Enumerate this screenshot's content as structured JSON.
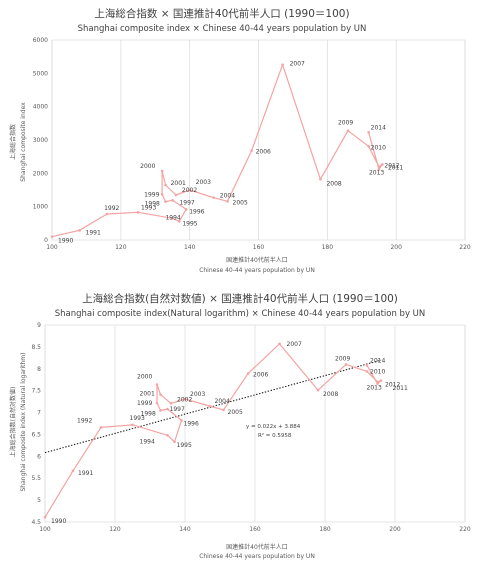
{
  "chart_data": [
    {
      "type": "line",
      "title": "上海総合指数 × 国連推計40代前半人口 (1990＝100)",
      "subtitle": "Shanghai composite index × Chinese 40-44 years population by UN",
      "xlabel": "国連推計40代前半人口",
      "xlabel_en": "Chinese 40-44 years population by UN",
      "ylabel": "上海総合指数",
      "ylabel_en": "Shanghai composite index",
      "xlim": [
        100,
        220
      ],
      "ylim": [
        0,
        6000
      ],
      "xticks": [
        "100",
        "120",
        "140",
        "160",
        "180",
        "200",
        "220"
      ],
      "yticks": [
        "0",
        "1000",
        "2000",
        "3000",
        "4000",
        "5000",
        "6000"
      ],
      "grid": "vertical",
      "line_color": "#f4a3a3",
      "points": [
        {
          "year": "1990",
          "x": 100,
          "y": 100
        },
        {
          "year": "1991",
          "x": 108,
          "y": 290
        },
        {
          "year": "1992",
          "x": 116,
          "y": 780
        },
        {
          "year": "1993",
          "x": 125,
          "y": 830
        },
        {
          "year": "1994",
          "x": 135,
          "y": 650
        },
        {
          "year": "1995",
          "x": 137,
          "y": 560
        },
        {
          "year": "1996",
          "x": 139,
          "y": 920
        },
        {
          "year": "1997",
          "x": 135,
          "y": 1190
        },
        {
          "year": "1998",
          "x": 133,
          "y": 1150
        },
        {
          "year": "1999",
          "x": 132,
          "y": 1370
        },
        {
          "year": "2000",
          "x": 132,
          "y": 2070
        },
        {
          "year": "2001",
          "x": 133,
          "y": 1650
        },
        {
          "year": "2002",
          "x": 136,
          "y": 1350
        },
        {
          "year": "2003",
          "x": 140,
          "y": 1500
        },
        {
          "year": "2004",
          "x": 147,
          "y": 1270
        },
        {
          "year": "2005",
          "x": 151,
          "y": 1160
        },
        {
          "year": "2006",
          "x": 158,
          "y": 2680
        },
        {
          "year": "2007",
          "x": 167,
          "y": 5260
        },
        {
          "year": "2008",
          "x": 178,
          "y": 1820
        },
        {
          "year": "2009",
          "x": 186,
          "y": 3280
        },
        {
          "year": "2010",
          "x": 192,
          "y": 2810
        },
        {
          "year": "2011",
          "x": 195,
          "y": 2200
        },
        {
          "year": "2012",
          "x": 196,
          "y": 2270
        },
        {
          "year": "2013",
          "x": 195,
          "y": 2120
        },
        {
          "year": "2014",
          "x": 192,
          "y": 3230
        }
      ]
    },
    {
      "type": "line",
      "title": "上海総合指数(自然対数値) × 国連推計40代前半人口 (1990＝100)",
      "subtitle": "Shanghai composite index(Natural logarithm) × Chinese 40-44 years population by UN",
      "xlabel": "国連推計40代前半人口",
      "xlabel_en": "Chinese 40-44 years population by UN",
      "ylabel": "上海総合指数(自然対数値)",
      "ylabel_en": "Shanghai composite index (Natural logarithm)",
      "xlim": [
        100,
        220
      ],
      "ylim": [
        4.5,
        9
      ],
      "xticks": [
        "100",
        "120",
        "140",
        "160",
        "180",
        "200",
        "220"
      ],
      "yticks": [
        "4.5",
        "5",
        "5.5",
        "6",
        "6.5",
        "7",
        "7.5",
        "8",
        "8.5",
        "9"
      ],
      "grid": "vertical",
      "line_color": "#f4a3a3",
      "trendline": {
        "slope": 0.022,
        "intercept": 3.884,
        "equation": "y = 0.022x + 3.884",
        "r2": "R² = 0.5958"
      },
      "points": [
        {
          "year": "1990",
          "x": 100,
          "y": 4.61
        },
        {
          "year": "1991",
          "x": 108,
          "y": 5.67
        },
        {
          "year": "1992",
          "x": 116,
          "y": 6.66
        },
        {
          "year": "1993",
          "x": 125,
          "y": 6.72
        },
        {
          "year": "1994",
          "x": 135,
          "y": 6.48
        },
        {
          "year": "1995",
          "x": 137,
          "y": 6.33
        },
        {
          "year": "1996",
          "x": 139,
          "y": 6.82
        },
        {
          "year": "1997",
          "x": 135,
          "y": 7.08
        },
        {
          "year": "1998",
          "x": 133,
          "y": 7.05
        },
        {
          "year": "1999",
          "x": 132,
          "y": 7.22
        },
        {
          "year": "2000",
          "x": 132,
          "y": 7.64
        },
        {
          "year": "2001",
          "x": 133,
          "y": 7.41
        },
        {
          "year": "2002",
          "x": 136,
          "y": 7.21
        },
        {
          "year": "2003",
          "x": 140,
          "y": 7.31
        },
        {
          "year": "2004",
          "x": 147,
          "y": 7.15
        },
        {
          "year": "2005",
          "x": 151,
          "y": 7.06
        },
        {
          "year": "2006",
          "x": 158,
          "y": 7.89
        },
        {
          "year": "2007",
          "x": 167,
          "y": 8.57
        },
        {
          "year": "2008",
          "x": 178,
          "y": 7.51
        },
        {
          "year": "2009",
          "x": 186,
          "y": 8.1
        },
        {
          "year": "2010",
          "x": 192,
          "y": 7.94
        },
        {
          "year": "2011",
          "x": 195,
          "y": 7.7
        },
        {
          "year": "2012",
          "x": 196,
          "y": 7.73
        },
        {
          "year": "2013",
          "x": 195,
          "y": 7.66
        },
        {
          "year": "2014",
          "x": 192,
          "y": 8.08
        }
      ]
    }
  ]
}
